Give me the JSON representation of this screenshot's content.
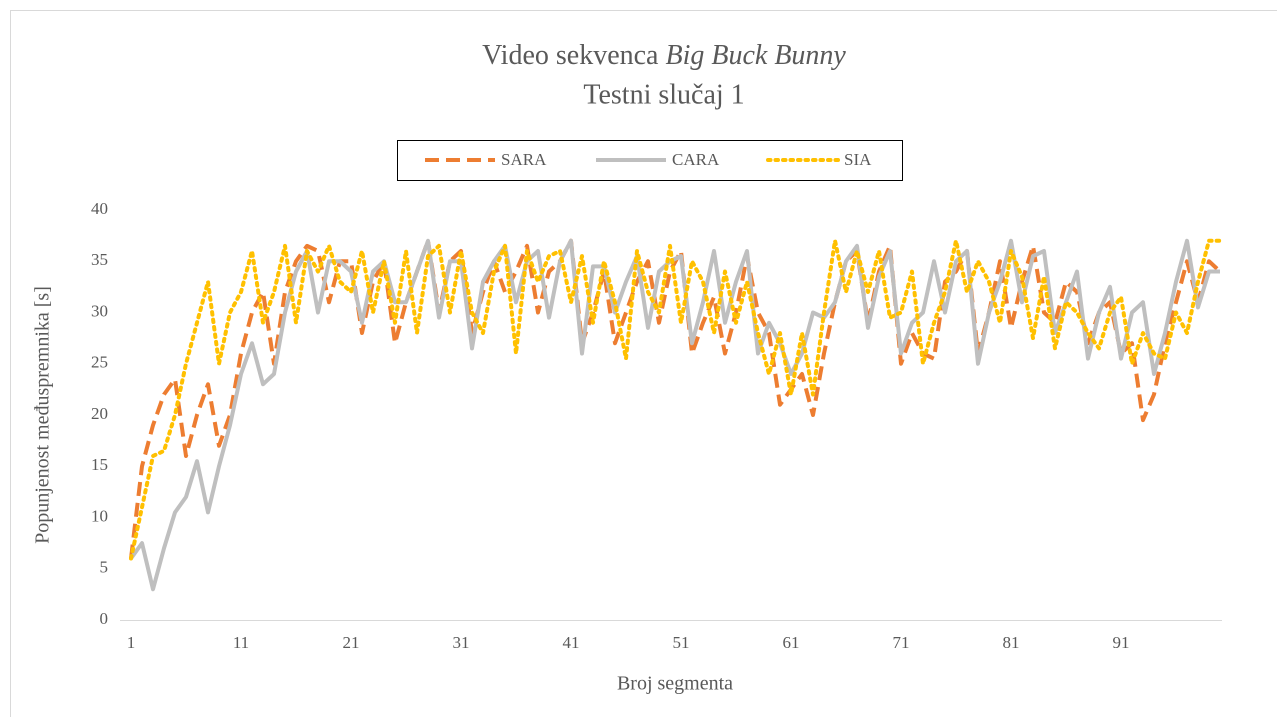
{
  "chart_data": {
    "type": "line",
    "title": [
      "Video sekvenca",
      "Big Buck Bunny"
    ],
    "subtitle": "Testni slučaj 1",
    "xlabel": "Broj segmenta",
    "ylabel": "Popunjenost međuspremnika [s]",
    "categories": [
      "1",
      null,
      null,
      null,
      null,
      null,
      null,
      null,
      null,
      null,
      "11",
      null,
      null,
      null,
      null,
      null,
      null,
      null,
      null,
      null,
      "21",
      null,
      null,
      null,
      null,
      null,
      null,
      null,
      null,
      null,
      "31",
      null,
      null,
      null,
      null,
      null,
      null,
      null,
      null,
      null,
      "41",
      null,
      null,
      null,
      null,
      null,
      null,
      null,
      null,
      null,
      "51",
      null,
      null,
      null,
      null,
      null,
      null,
      null,
      null,
      null,
      "61",
      null,
      null,
      null,
      null,
      null,
      null,
      null,
      null,
      null,
      "71",
      null,
      null,
      null,
      null,
      null,
      null,
      null,
      null,
      null,
      "81",
      null,
      null,
      null,
      null,
      null,
      null,
      null,
      null,
      null,
      "91",
      null,
      null,
      null,
      null,
      null,
      null,
      null,
      null,
      null
    ],
    "ylim": [
      0,
      40
    ],
    "yticks": [
      0,
      5,
      10,
      15,
      20,
      25,
      30,
      35,
      40
    ],
    "grid": false,
    "legend": "top",
    "series": [
      {
        "name": "SARA",
        "color": "#ed7d31",
        "style": "dashed",
        "values": [
          6,
          15,
          19,
          22,
          23.5,
          16,
          20,
          23,
          17,
          20,
          26,
          30,
          32,
          25,
          32,
          35,
          36.5,
          36,
          31,
          35,
          35,
          28,
          33,
          35,
          27,
          31,
          34,
          37,
          30,
          35,
          36,
          28,
          32,
          35,
          32,
          34,
          36.5,
          30,
          34,
          35,
          37,
          27,
          30,
          34,
          27,
          30,
          33,
          35,
          29,
          34,
          36,
          26,
          29,
          31.5,
          26,
          30,
          35.5,
          30,
          28,
          21,
          22.5,
          24,
          20,
          26,
          31,
          35,
          36,
          29,
          34,
          36.5,
          25,
          28,
          26,
          25.5,
          33,
          34,
          36,
          26,
          30,
          35,
          28.5,
          33,
          36.5,
          30,
          29,
          33,
          32,
          27,
          30,
          31,
          26,
          27,
          19.5,
          22,
          27,
          31,
          35,
          31,
          35,
          34
        ]
      },
      {
        "name": "CARA",
        "color": "#bfbfbf",
        "style": "solid",
        "values": [
          6,
          7.5,
          3,
          7,
          10.5,
          12,
          15.5,
          10.5,
          15,
          19,
          24,
          27,
          23,
          24,
          30,
          34,
          36,
          30,
          35,
          35,
          34,
          29,
          34,
          35,
          31,
          31,
          34,
          37,
          29.5,
          35,
          35,
          26.5,
          33,
          35,
          36.5,
          31,
          35,
          36,
          29.5,
          35,
          37,
          26,
          34.5,
          34.5,
          30,
          33,
          35.5,
          28.5,
          34,
          35,
          35.5,
          27,
          31,
          36,
          29,
          33,
          36,
          26,
          29,
          27,
          24,
          26,
          30,
          29.5,
          31,
          35,
          36.5,
          28.5,
          33.5,
          36,
          26,
          29,
          30,
          35,
          30,
          35,
          36,
          25,
          30,
          33,
          37,
          31,
          35.5,
          36,
          28,
          31,
          34,
          25.5,
          30,
          32.5,
          25.5,
          30,
          31,
          24,
          28,
          33,
          37,
          30.5,
          34,
          34
        ]
      },
      {
        "name": "SIA",
        "color": "#ffc000",
        "style": "dotted",
        "values": [
          6,
          11,
          16,
          16.5,
          20,
          25,
          29,
          33,
          25,
          30,
          32,
          36,
          29,
          32,
          36.5,
          29,
          36,
          34,
          36.5,
          33,
          32,
          36,
          30,
          35,
          29,
          36,
          28,
          35.5,
          36.5,
          30,
          36,
          30,
          28,
          34,
          36.5,
          26,
          36,
          33,
          35.5,
          36,
          31,
          35.5,
          29,
          35,
          31,
          25.5,
          36,
          32,
          30,
          36.5,
          29,
          35,
          33,
          28,
          34,
          29,
          33,
          28,
          24,
          28,
          22,
          28,
          22,
          30,
          37,
          32,
          36,
          32,
          36,
          29.5,
          30,
          34,
          25,
          29,
          32,
          37,
          32,
          35,
          33,
          29,
          36,
          33.5,
          27.5,
          33.5,
          26.5,
          31,
          30,
          28,
          26.5,
          30,
          31.5,
          25,
          28,
          26,
          25.5,
          30,
          28,
          33,
          37,
          37
        ]
      }
    ]
  }
}
